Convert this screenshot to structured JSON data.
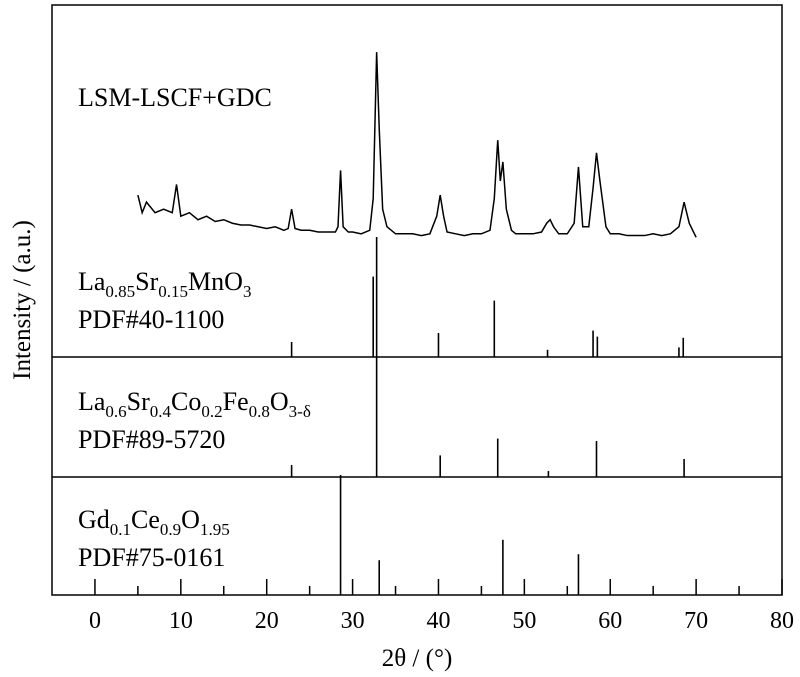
{
  "chart_data": {
    "type": "xrd",
    "xlabel": "2θ / (°)",
    "ylabel": "Intensity / (a.u.)",
    "xlim": [
      -5,
      80
    ],
    "xticks": [
      0,
      10,
      20,
      30,
      40,
      50,
      60,
      70,
      80
    ],
    "xminorticks": [
      5,
      15,
      25,
      35,
      45,
      55,
      65,
      75
    ],
    "color": "#000000",
    "series": [
      {
        "name": "LSM-LSCF+GDC",
        "ylim": [
          0,
          100
        ],
        "x": [
          5,
          5.5,
          6,
          7,
          8,
          9,
          9.5,
          10,
          11,
          12,
          13,
          14,
          15,
          16,
          17,
          18,
          19,
          20,
          21,
          22,
          22.5,
          22.9,
          23.3,
          24,
          25,
          26,
          27,
          28,
          28.3,
          28.6,
          28.9,
          29.5,
          30,
          31,
          32,
          32.4,
          32.8,
          33.1,
          33.5,
          34,
          35,
          36,
          37,
          38,
          39,
          39.8,
          40.2,
          40.6,
          41,
          42,
          43,
          44,
          45,
          46,
          46.5,
          46.9,
          47.2,
          47.5,
          47.9,
          48.5,
          49,
          50,
          51,
          52,
          52.6,
          53,
          53.4,
          54,
          55,
          55.8,
          56.3,
          56.8,
          57.5,
          58,
          58.4,
          58.8,
          59.5,
          60,
          61,
          62,
          63,
          64,
          65,
          66,
          67,
          68,
          68.6,
          69.2,
          70
        ],
        "values": [
          46,
          41,
          44,
          41,
          42,
          41,
          49,
          40,
          41,
          39,
          40,
          38.5,
          39,
          38,
          37.5,
          37.5,
          37,
          36.5,
          37,
          36,
          36.5,
          42,
          36.5,
          36,
          36,
          35.5,
          35.5,
          35.5,
          37,
          53,
          37,
          35.5,
          35.5,
          35,
          36,
          45,
          86.6,
          65,
          42,
          37,
          35,
          35,
          35,
          34.5,
          35,
          40,
          46,
          40,
          35.5,
          35,
          34.5,
          35,
          35,
          36,
          45,
          61.6,
          50,
          55.4,
          42,
          36,
          35,
          35,
          35,
          35.5,
          38,
          39,
          37,
          35,
          35,
          38,
          54,
          37,
          37,
          48,
          58,
          50,
          37,
          35,
          35,
          34.5,
          34.5,
          34.5,
          35,
          34.5,
          35,
          37,
          44,
          38,
          34
        ]
      }
    ],
    "references": [
      {
        "formula": [
          "La",
          "0.85",
          "Sr",
          "0.15",
          "MnO",
          "3"
        ],
        "pdf": "PDF#40-1100",
        "ylim": [
          0,
          100
        ],
        "x": [
          22.9,
          32.4,
          32.8,
          40,
          46.5,
          52.7,
          58,
          58.5,
          68,
          68.5
        ],
        "values": [
          12.5,
          67,
          100,
          20,
          47,
          6,
          22,
          17,
          8,
          16
        ]
      },
      {
        "formula": [
          "La",
          "0.6",
          "Sr",
          "0.4",
          "Co",
          "0.2",
          "Fe",
          "0.8",
          "O",
          "3-δ"
        ],
        "pdf": "PDF#89-5720",
        "ylim": [
          0,
          100
        ],
        "x": [
          22.9,
          32.8,
          40.2,
          46.9,
          52.8,
          58.4,
          68.6
        ],
        "values": [
          10,
          100,
          18,
          32,
          5,
          30,
          15
        ]
      },
      {
        "formula": [
          "Gd",
          "0.1",
          "Ce",
          "0.9",
          "O",
          "1.95"
        ],
        "pdf": "PDF#75-0161",
        "ylim": [
          0,
          100
        ],
        "x": [
          28.6,
          33.1,
          47.5,
          56.3
        ],
        "values": [
          100,
          29,
          46,
          34
        ]
      }
    ]
  }
}
